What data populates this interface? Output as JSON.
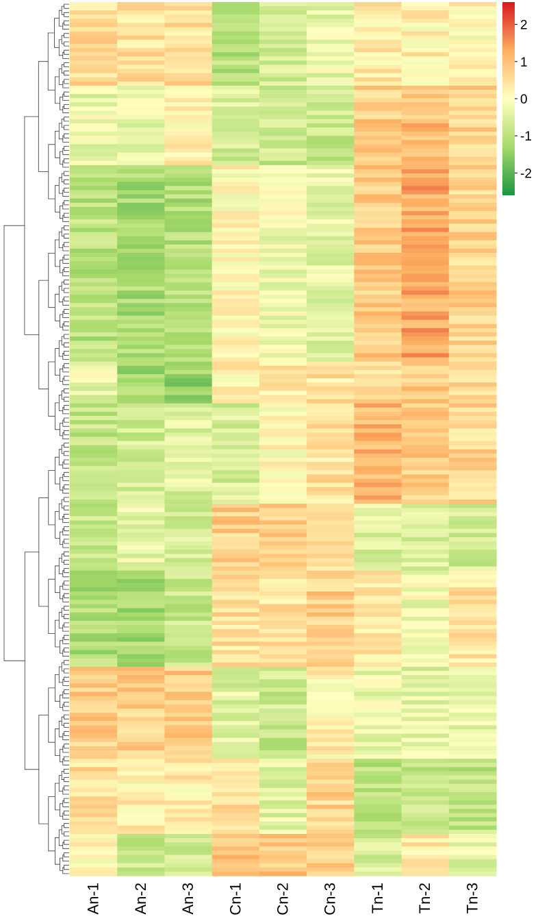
{
  "chart_data": {
    "type": "heatmap",
    "columns": [
      "An-1",
      "An-2",
      "An-3",
      "Cn-1",
      "Cn-2",
      "Cn-3",
      "Tn-1",
      "Tn-2",
      "Tn-3"
    ],
    "row_count": 209,
    "row_dendrogram": true,
    "value_range": [
      -2.6,
      2.6
    ],
    "colorbar": {
      "ticks": [
        2,
        1,
        0,
        -1,
        -2
      ],
      "tick_labels": [
        "2",
        "1",
        "0",
        "-1",
        "-2"
      ],
      "colors": [
        "#1a9641",
        "#a6d96a",
        "#ffffbf",
        "#fdae61",
        "#d7191c"
      ],
      "placement": "top-right"
    },
    "clusters": [
      {
        "rows": 20,
        "values": [
          0.6,
          0.5,
          0.5,
          -1.0,
          -0.6,
          -0.3,
          0.3,
          0.2,
          0.1
        ]
      },
      {
        "rows": 19,
        "values": [
          -0.3,
          -0.3,
          0.2,
          -0.6,
          -0.8,
          -0.8,
          0.8,
          1.0,
          0.7
        ]
      },
      {
        "rows": 47,
        "values": [
          -1.0,
          -1.2,
          -1.1,
          0.1,
          -0.2,
          -0.4,
          0.8,
          1.3,
          0.7
        ]
      },
      {
        "rows": 10,
        "values": [
          -0.3,
          -1.3,
          -1.4,
          0.2,
          0.3,
          0.4,
          0.6,
          0.8,
          0.5
        ]
      },
      {
        "rows": 24,
        "values": [
          -0.9,
          -0.7,
          -0.5,
          -0.6,
          0.1,
          0.5,
          1.1,
          0.8,
          0.6
        ]
      },
      {
        "rows": 16,
        "values": [
          -0.8,
          -0.3,
          -0.6,
          0.8,
          0.7,
          0.6,
          -0.5,
          -0.5,
          -0.7
        ]
      },
      {
        "rows": 23,
        "values": [
          -1.1,
          -1.2,
          -0.8,
          0.5,
          0.4,
          0.8,
          0.3,
          -0.2,
          0.4
        ]
      },
      {
        "rows": 22,
        "values": [
          0.8,
          0.8,
          0.9,
          -0.5,
          -0.8,
          0.2,
          -0.3,
          -0.4,
          -0.4
        ]
      },
      {
        "rows": 18,
        "values": [
          0.5,
          0.3,
          0.3,
          0.5,
          -0.4,
          0.7,
          -0.9,
          -0.8,
          -0.9
        ]
      },
      {
        "rows": 10,
        "values": [
          0.1,
          -0.8,
          -0.7,
          1.0,
          0.9,
          0.8,
          -0.6,
          0.3,
          -0.4
        ]
      }
    ]
  }
}
